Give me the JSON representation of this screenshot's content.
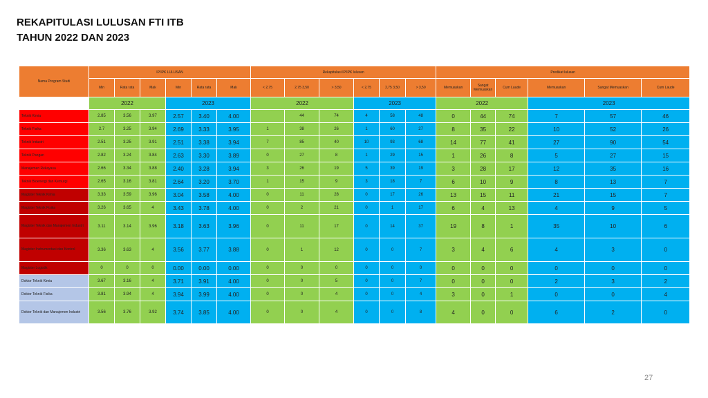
{
  "title": {
    "line1": "REKAPITULASI LULUSAN FTI ITB",
    "line2": "TAHUN 2022 DAN 2023"
  },
  "page_number": "27",
  "colors": {
    "header_orange": "#ED7D31",
    "green": "#92D050",
    "blue": "#00B0F0",
    "red": "#FF0000",
    "dark_red": "#C00000",
    "light_blue": "#B4C6E7"
  },
  "table": {
    "col_program": "Nama Program Studi",
    "group_ip": "IP/IPK LULUSAN",
    "group_rekap": "Rekapitulasi IP/IPK lulusan",
    "group_predikat": "Predikat lulusan",
    "sub_ip": [
      "Min",
      "Rata rata",
      "Mak",
      "Min",
      "Rata rata",
      "Mak"
    ],
    "sub_rekap": [
      "< 2,75",
      "2,75 3,50",
      "> 3,50",
      "< 2,75",
      "2,75 3,50",
      "> 3,50"
    ],
    "sub_pred": [
      "Memuaskan",
      "Sangat Memuaskan",
      "Cum Laude",
      "Memuaskan",
      "Sangat Memuaskan",
      "Cum Laude"
    ],
    "years": [
      "2022",
      "2023",
      "2022",
      "2023",
      "2022",
      "2023"
    ],
    "rows": [
      {
        "name": "Teknik  Kimia",
        "v": [
          "2.85",
          "3.56",
          "3.97",
          "2.57",
          "3.40",
          "4.00",
          "",
          "44",
          "74",
          "4",
          "58",
          "48",
          "0",
          "44",
          "74",
          "7",
          "57",
          "46"
        ]
      },
      {
        "name": "Teknik  Fisika",
        "v": [
          "2.7",
          "3.25",
          "3.94",
          "2.69",
          "3.33",
          "3.95",
          "1",
          "38",
          "26",
          "1",
          "60",
          "27",
          "8",
          "35",
          "22",
          "10",
          "52",
          "26"
        ]
      },
      {
        "name": "Teknik  Industri",
        "v": [
          "2.51",
          "3.25",
          "3.91",
          "2.51",
          "3.38",
          "3.94",
          "7",
          "85",
          "40",
          "10",
          "93",
          "68",
          "14",
          "77",
          "41",
          "27",
          "90",
          "54"
        ]
      },
      {
        "name": "Teknik  Pangan",
        "v": [
          "2.82",
          "3.24",
          "3.84",
          "2.63",
          "3.30",
          "3.89",
          "0",
          "27",
          "8",
          "1",
          "29",
          "15",
          "1",
          "26",
          "8",
          "5",
          "27",
          "15"
        ]
      },
      {
        "name": "Manajemen  Rekayasa",
        "v": [
          "2.66",
          "3.34",
          "3.88",
          "2.40",
          "3.28",
          "3.94",
          "3",
          "26",
          "19",
          "5",
          "39",
          "19",
          "3",
          "28",
          "17",
          "12",
          "35",
          "16"
        ]
      },
      {
        "name": "Teknik  Bioenergi  dan Kemurgi",
        "v": [
          "2.65",
          "3.16",
          "3.81",
          "2.64",
          "3.20",
          "3.70",
          "1",
          "15",
          "9",
          "3",
          "18",
          "7",
          "6",
          "10",
          "9",
          "8",
          "13",
          "7"
        ]
      },
      {
        "name": "Magister  Teknik  Kimia",
        "v": [
          "3.33",
          "3.59",
          "3.96",
          "3.04",
          "3.58",
          "4.00",
          "0",
          "11",
          "28",
          "0",
          "17",
          "26",
          "13",
          "15",
          "11",
          "21",
          "15",
          "7"
        ]
      },
      {
        "name": "Magister  Teknik  Fisika",
        "v": [
          "3.26",
          "3.65",
          "4",
          "3.43",
          "3.78",
          "4.00",
          "0",
          "2",
          "21",
          "0",
          "1",
          "17",
          "6",
          "4",
          "13",
          "4",
          "9",
          "5"
        ]
      },
      {
        "name": "Magister  Teknik  dan Manajemen Industri",
        "v": [
          "3.11",
          "3.14",
          "3.96",
          "3.18",
          "3.63",
          "3.96",
          "0",
          "11",
          "17",
          "0",
          "14",
          "37",
          "19",
          "8",
          "1",
          "35",
          "10",
          "6"
        ]
      },
      {
        "name": "Magister  Instrumentasi  dan Kontrol",
        "v": [
          "3.36",
          "3.63",
          "4",
          "3.56",
          "3.77",
          "3.88",
          "0",
          "1",
          "12",
          "0",
          "0",
          "7",
          "3",
          "4",
          "6",
          "4",
          "3",
          "0"
        ]
      },
      {
        "name": "Magister  Logistik",
        "v": [
          "0",
          "0",
          "0",
          "0.00",
          "0.00",
          "0.00",
          "0",
          "0",
          "0",
          "0",
          "0",
          "0",
          "0",
          "0",
          "0",
          "0",
          "0",
          "0"
        ]
      },
      {
        "name": "Doktor Teknik Kimia",
        "v": [
          "3.67",
          "3.16",
          "4",
          "3.71",
          "3.91",
          "4.00",
          "0",
          "0",
          "5",
          "0",
          "0",
          "7",
          "0",
          "0",
          "0",
          "2",
          "3",
          "2"
        ]
      },
      {
        "name": "Doktor Teknik  Fisika",
        "v": [
          "3.81",
          "3.94",
          "4",
          "3.94",
          "3.99",
          "4.00",
          "0",
          "0",
          "4",
          "0",
          "0",
          "4",
          "3",
          "0",
          "1",
          "0",
          "0",
          "4"
        ]
      },
      {
        "name": "Doktor Teknik  dan Manajemen Industri",
        "v": [
          "3.56",
          "3.76",
          "3.92",
          "3.74",
          "3.85",
          "4.00",
          "0",
          "0",
          "4",
          "0",
          "0",
          "8",
          "4",
          "0",
          "0",
          "6",
          "2",
          "0"
        ]
      }
    ]
  }
}
